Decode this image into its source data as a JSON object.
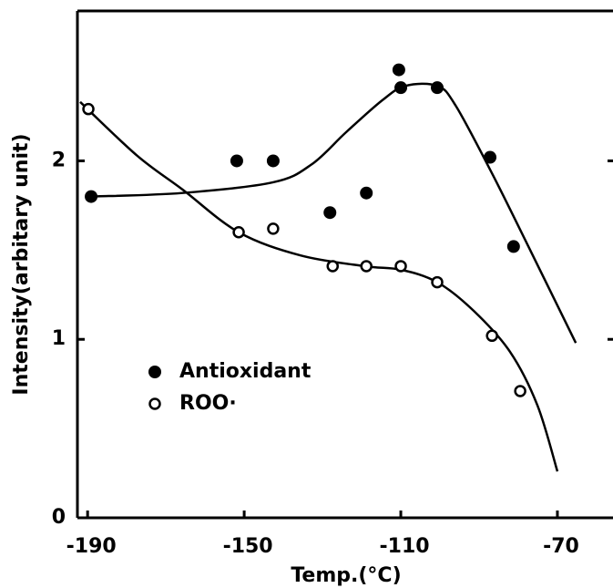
{
  "chart_data": {
    "type": "scatter",
    "xlabel": "Temp.(°C)",
    "ylabel": "Intensity(arbitary unit)",
    "xlim": [
      -192.6,
      -55.8
    ],
    "xticks": [
      -190,
      -150,
      -110,
      -70
    ],
    "ylim": [
      0,
      2.84
    ],
    "yticks": [
      0,
      1,
      2
    ],
    "legend": "lower left",
    "series": [
      {
        "name": "Antioxidant",
        "color": "#000000",
        "marker": "filled",
        "x": [
          -189.1,
          -151.9,
          -142.6,
          -128.1,
          -118.8,
          -110.5,
          -110,
          -100.7,
          -87.2,
          -81.2
        ],
        "values": [
          1.8,
          2.0,
          2.0,
          1.71,
          1.82,
          2.51,
          2.41,
          2.41,
          2.02,
          1.52
        ],
        "fit_x": [
          -189.1,
          -165.8,
          -142.6,
          -132.8,
          -124,
          -114.7,
          -108.8,
          -100.7,
          -96.0,
          -86.7,
          -77.4,
          -65.3
        ],
        "fit_values": [
          1.8,
          1.82,
          1.88,
          1.98,
          2.16,
          2.34,
          2.42,
          2.42,
          2.31,
          1.93,
          1.52,
          0.98
        ]
      },
      {
        "name": "ROO·",
        "color": "#000000",
        "marker": "open",
        "x": [
          -189.8,
          -151.4,
          -142.6,
          -127.4,
          -118.8,
          -110,
          -100.7,
          -86.7,
          -79.5
        ],
        "values": [
          2.29,
          1.6,
          1.62,
          1.41,
          1.41,
          1.41,
          1.32,
          1.02,
          0.71
        ],
        "fit_x": [
          -191.9,
          -177.4,
          -165.8,
          -151.4,
          -135.6,
          -119.3,
          -110,
          -100.7,
          -91.4,
          -82.1,
          -75.1,
          -70
        ],
        "fit_values": [
          2.33,
          2.03,
          1.84,
          1.6,
          1.47,
          1.41,
          1.39,
          1.32,
          1.16,
          0.93,
          0.63,
          0.26
        ]
      }
    ]
  }
}
